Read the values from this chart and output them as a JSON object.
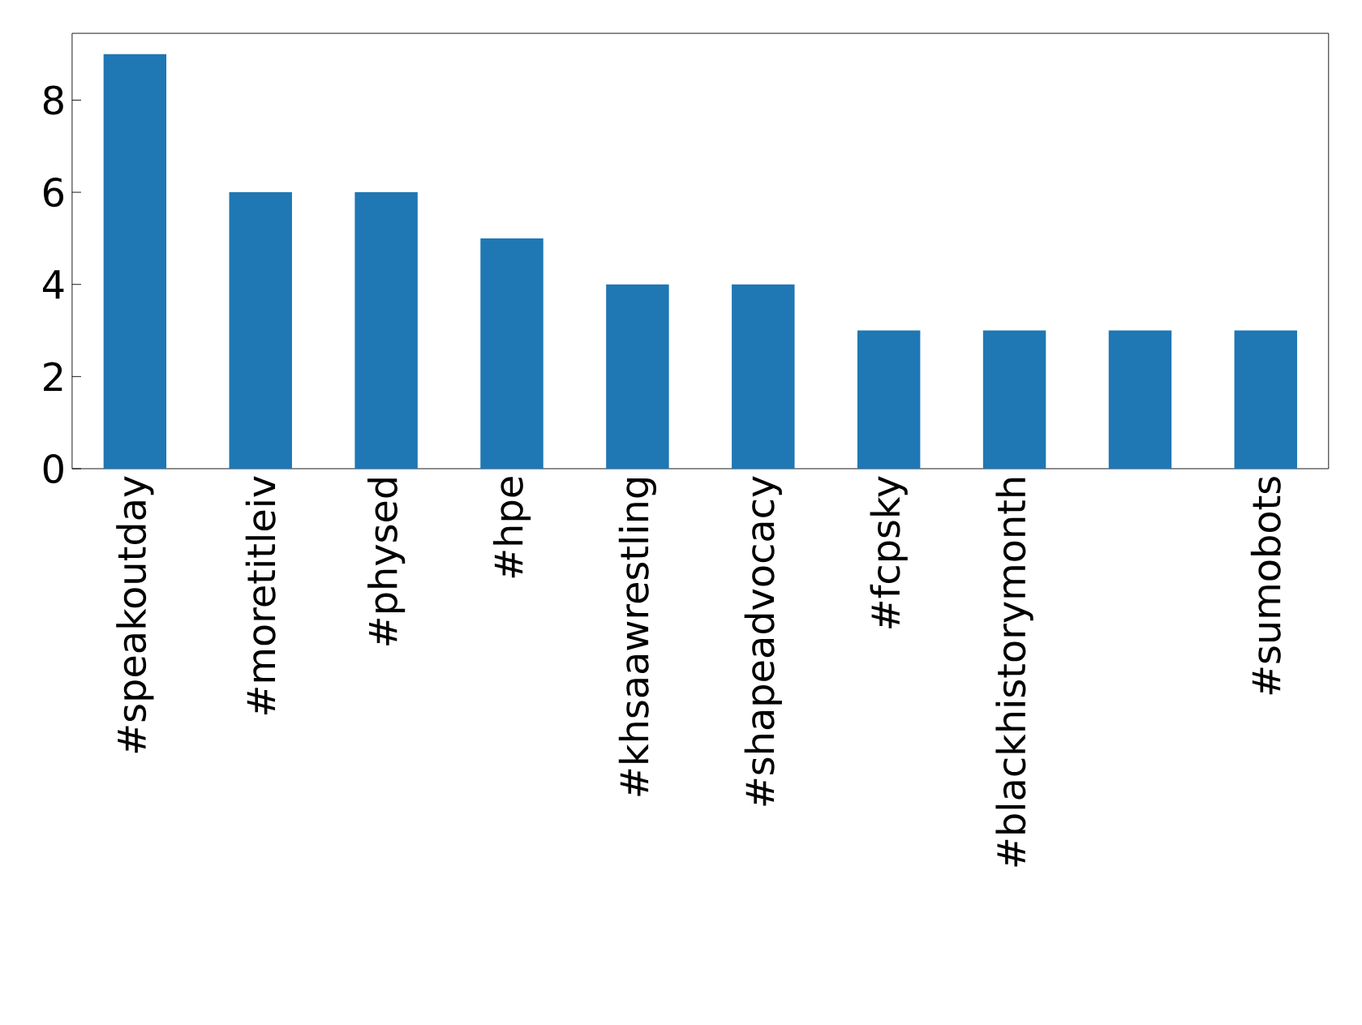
{
  "chart_data": {
    "type": "bar",
    "categories": [
      "#speakoutday",
      "#moretitleiv",
      "#physed",
      "#hpe",
      "#khsaawrestling",
      "#shapeadvocacy",
      "#fcpsky",
      "#blackhistorymonth",
      null,
      "#sumobots"
    ],
    "values": [
      9,
      6,
      6,
      5,
      4,
      4,
      3,
      3,
      3,
      3
    ],
    "color": "#1f77b4",
    "ylim": [
      0,
      9.45
    ],
    "yticks": [
      0,
      2,
      4,
      6,
      8
    ]
  }
}
